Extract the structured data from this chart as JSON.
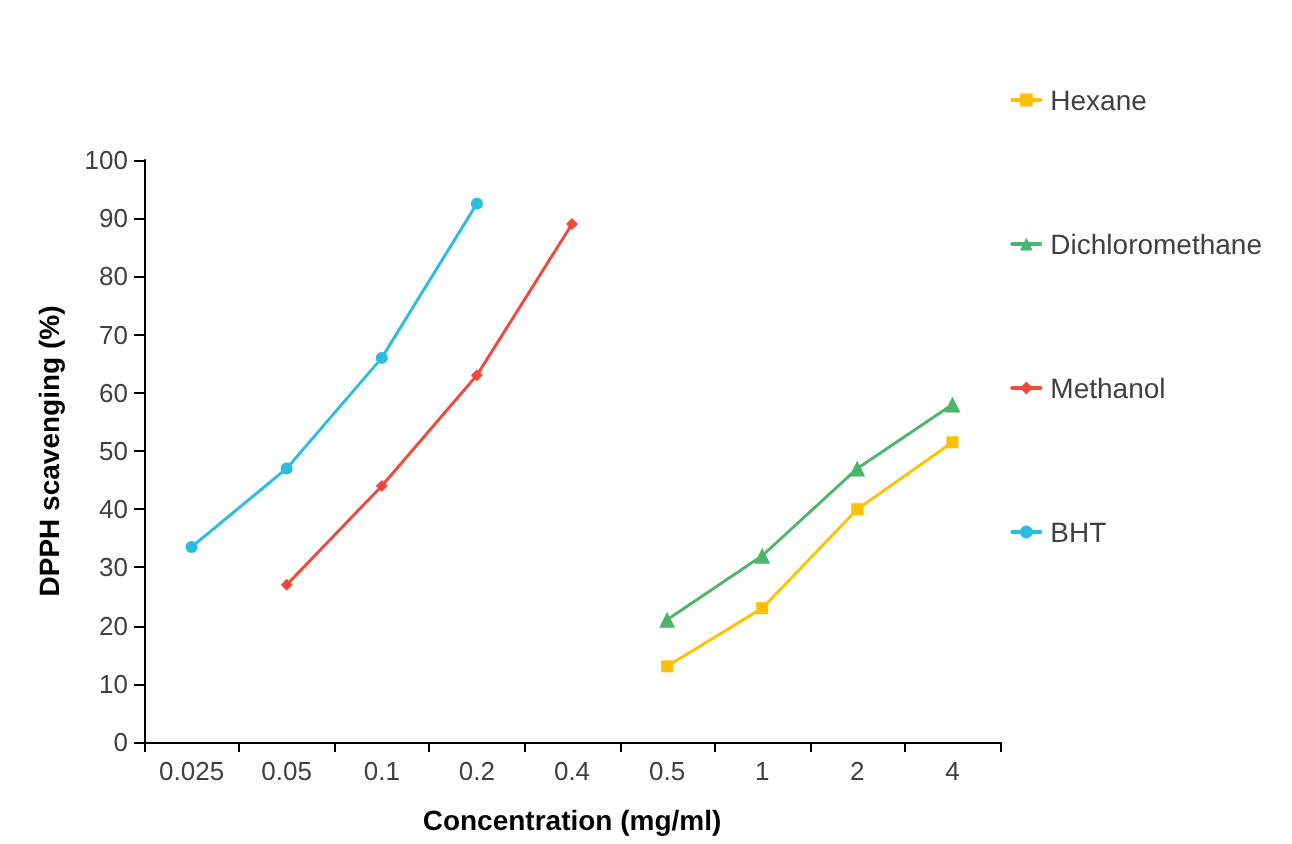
{
  "chart_data": {
    "type": "line",
    "xlabel": "Concentration (mg/ml)",
    "ylabel": "DPPH scavenging (%)",
    "categories": [
      "0.025",
      "0.05",
      "0.1",
      "0.2",
      "0.4",
      "0.5",
      "1",
      "2",
      "4"
    ],
    "series": [
      {
        "name": "Hexane",
        "color": "#ffc000",
        "marker": "square",
        "values": [
          null,
          null,
          null,
          null,
          null,
          13,
          23,
          40,
          51.5
        ]
      },
      {
        "name": "Dichloromethane",
        "color": "#4cb56c",
        "marker": "triangle",
        "values": [
          null,
          null,
          null,
          null,
          null,
          21,
          32,
          47,
          58
        ]
      },
      {
        "name": "Methanol",
        "color": "#f0483a",
        "marker": "diamond",
        "values": [
          null,
          27,
          44,
          63,
          89,
          null,
          null,
          null,
          null
        ]
      },
      {
        "name": "BHT",
        "color": "#2bbde0",
        "marker": "circle",
        "values": [
          33.5,
          47,
          66,
          92.5,
          null,
          null,
          null,
          null,
          null
        ]
      }
    ],
    "ylim": [
      0,
      100
    ],
    "yticks": [
      0,
      10,
      20,
      30,
      40,
      50,
      60,
      70,
      80,
      90,
      100
    ],
    "grid": false,
    "legend": "top right",
    "line_style": "solid"
  }
}
